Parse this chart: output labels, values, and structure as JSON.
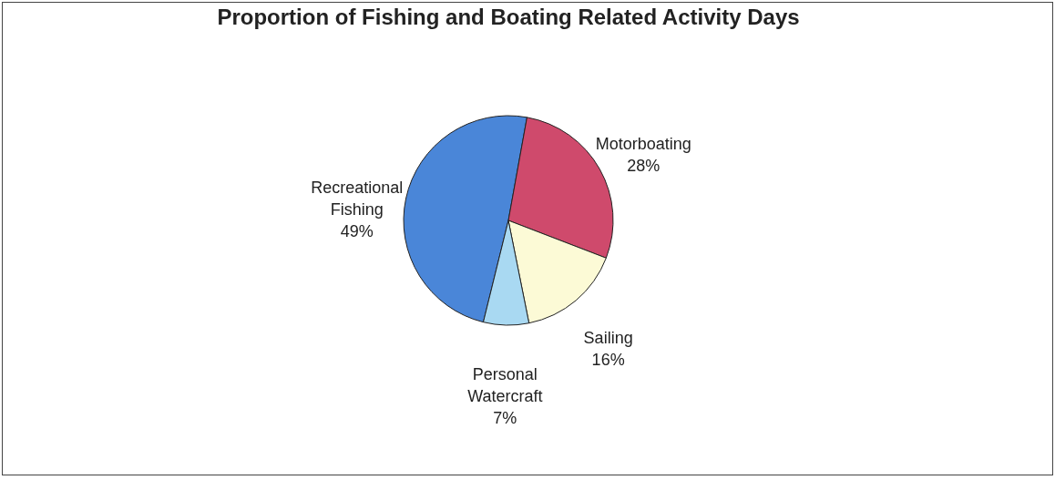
{
  "chart_data": {
    "type": "pie",
    "title": "Proportion of Fishing and Boating Related Activity Days",
    "categories": [
      "Recreational Fishing",
      "Motorboating",
      "Sailing",
      "Personal Watercraft"
    ],
    "values": [
      49,
      28,
      16,
      7
    ],
    "value_labels": [
      "49%",
      "28%",
      "16%",
      "7%"
    ],
    "colors": [
      "#4a86d8",
      "#cf4a6c",
      "#fcfad6",
      "#a9d9f2"
    ]
  }
}
